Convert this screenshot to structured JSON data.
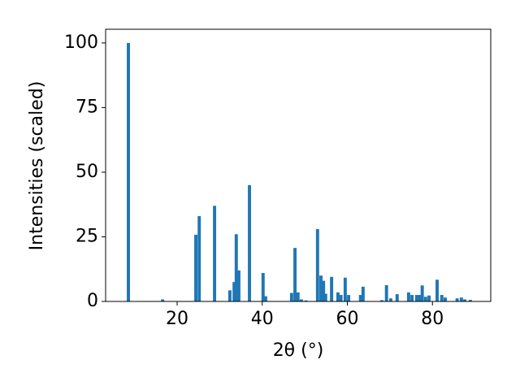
{
  "chart_data": {
    "type": "bar",
    "xlabel": "2θ (°)",
    "ylabel": "Intensities (scaled)",
    "x": [
      8.55,
      16.6,
      24.4,
      25.2,
      28.8,
      32.4,
      33.4,
      33.9,
      34.5,
      37.0,
      40.2,
      40.8,
      46.9,
      47.7,
      48.4,
      49.2,
      50.3,
      53.0,
      53.8,
      54.4,
      54.9,
      56.3,
      57.8,
      58.5,
      59.5,
      60.3,
      63.1,
      63.7,
      68.1,
      69.2,
      70.2,
      71.7,
      74.4,
      75.2,
      76.3,
      76.9,
      77.6,
      78.4,
      79.2,
      81.1,
      82.2,
      83.0,
      85.8,
      86.8,
      87.6,
      88.9
    ],
    "values": [
      100,
      0.8,
      25.8,
      33,
      37,
      4.3,
      7.5,
      26,
      12,
      45,
      11,
      2,
      3.3,
      20.7,
      3.5,
      0.8,
      0.4,
      28,
      10,
      8,
      3,
      9.5,
      3.5,
      2.5,
      9.2,
      2.5,
      2.5,
      5.7,
      0.5,
      6.3,
      1.2,
      2.8,
      3.5,
      2.5,
      2.5,
      2.5,
      6.2,
      1.8,
      2.3,
      8.4,
      2.5,
      1.5,
      1.2,
      1.5,
      0.8,
      0.6
    ],
    "color": "#1f77b4",
    "xlim": [
      3.2,
      93.7
    ],
    "xticks": [
      20,
      40,
      60,
      80
    ],
    "ylim": [
      0,
      105.3
    ],
    "yticks": [
      0,
      25,
      50,
      75,
      100
    ]
  }
}
